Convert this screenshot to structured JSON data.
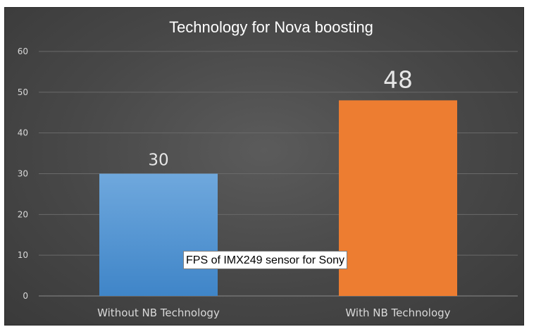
{
  "chart_data": {
    "type": "bar",
    "title": "Technology for Nova boosting",
    "categories": [
      "Without NB Technology",
      "With NB Technology"
    ],
    "values": [
      30,
      48
    ],
    "data_labels": [
      "30",
      "48"
    ],
    "ylim": [
      0,
      60
    ],
    "y_ticks": [
      0,
      10,
      20,
      30,
      40,
      50,
      60
    ],
    "grid": true,
    "legend": "none",
    "annotation": "FPS of IMX249 sensor for Sony",
    "colors": {
      "background": "#474747",
      "bar_without": "#5b9bd5",
      "bar_with": "#ed7d31",
      "text": "#d9d9d9",
      "title": "#ffffff"
    }
  }
}
